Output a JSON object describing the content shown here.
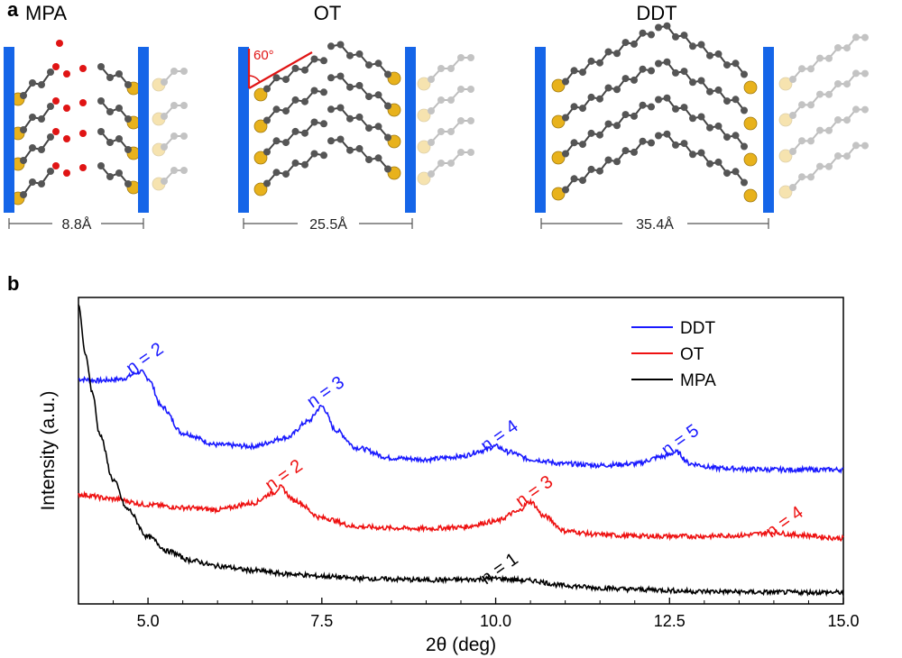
{
  "colors": {
    "electrode": "#1565e8",
    "sulfur": "#e8b21c",
    "carbon": "#555555",
    "oxygen": "#e01414",
    "angle": "#e01414",
    "DDT": "#1a1aff",
    "OT": "#ee1111",
    "MPA": "#000000"
  },
  "panel_a": {
    "letter": "a",
    "structures": [
      {
        "name": "MPA",
        "spacing": "8.8Å"
      },
      {
        "name": "OT",
        "spacing": "25.5Å",
        "angle": "60°"
      },
      {
        "name": "DDT",
        "spacing": "35.4Å"
      }
    ]
  },
  "panel_b": {
    "letter": "b"
  },
  "chart_data": {
    "type": "line",
    "xlabel": "2θ (deg)",
    "ylabel": "Intensity (a.u.)",
    "xlim": [
      4.0,
      15.0
    ],
    "ylim": [
      0,
      1
    ],
    "xticks": [
      5.0,
      7.5,
      10.0,
      12.5,
      15.0
    ],
    "xtick_labels": [
      "5.0",
      "7.5",
      "10.0",
      "12.5",
      "15.0"
    ],
    "legend": {
      "position": "top-right",
      "entries": [
        "DDT",
        "OT",
        "MPA"
      ]
    },
    "series": [
      {
        "name": "DDT",
        "x": [
          4.0,
          4.3,
          4.6,
          4.9,
          5.0,
          5.2,
          5.5,
          6.0,
          6.5,
          7.0,
          7.3,
          7.5,
          7.7,
          8.0,
          8.5,
          9.0,
          9.5,
          9.8,
          10.0,
          10.2,
          10.5,
          11.0,
          11.5,
          12.0,
          12.4,
          12.6,
          12.8,
          13.2,
          14.0,
          15.0
        ],
        "values": [
          0.745,
          0.74,
          0.745,
          0.77,
          0.748,
          0.65,
          0.56,
          0.52,
          0.515,
          0.545,
          0.6,
          0.652,
          0.57,
          0.51,
          0.475,
          0.47,
          0.48,
          0.5,
          0.515,
          0.495,
          0.47,
          0.455,
          0.45,
          0.455,
          0.48,
          0.495,
          0.455,
          0.44,
          0.435,
          0.435
        ]
      },
      {
        "name": "OT",
        "x": [
          4.0,
          4.5,
          5.0,
          5.5,
          6.0,
          6.5,
          6.8,
          6.9,
          7.1,
          7.5,
          8.0,
          8.5,
          9.0,
          9.5,
          10.0,
          10.3,
          10.5,
          10.7,
          11.0,
          11.5,
          12.0,
          12.5,
          13.0,
          13.5,
          14.0,
          14.3,
          15.0
        ],
        "values": [
          0.35,
          0.335,
          0.315,
          0.305,
          0.298,
          0.32,
          0.355,
          0.375,
          0.33,
          0.27,
          0.24,
          0.235,
          0.233,
          0.238,
          0.258,
          0.29,
          0.325,
          0.275,
          0.225,
          0.212,
          0.208,
          0.207,
          0.207,
          0.21,
          0.22,
          0.212,
          0.2
        ]
      },
      {
        "name": "MPA",
        "x": [
          4.0,
          4.1,
          4.2,
          4.3,
          4.5,
          4.7,
          5.0,
          5.3,
          5.6,
          6.0,
          6.5,
          7.0,
          7.5,
          8.0,
          8.5,
          9.0,
          9.5,
          10.0,
          10.5,
          11.0,
          11.5,
          12.0,
          13.0,
          14.0,
          15.0
        ],
        "values": [
          1.0,
          0.83,
          0.7,
          0.56,
          0.4,
          0.3,
          0.205,
          0.155,
          0.125,
          0.105,
          0.09,
          0.078,
          0.07,
          0.063,
          0.06,
          0.057,
          0.058,
          0.062,
          0.055,
          0.038,
          0.03,
          0.025,
          0.018,
          0.015,
          0.015
        ]
      }
    ],
    "annotations": [
      {
        "series": "DDT",
        "text": "n = 2",
        "x": 5.0,
        "y": 0.8
      },
      {
        "series": "DDT",
        "text": "n = 3",
        "x": 7.6,
        "y": 0.685
      },
      {
        "series": "DDT",
        "text": "n = 4",
        "x": 10.1,
        "y": 0.535
      },
      {
        "series": "DDT",
        "text": "n = 5",
        "x": 12.7,
        "y": 0.52
      },
      {
        "series": "OT",
        "text": "n = 2",
        "x": 7.0,
        "y": 0.4
      },
      {
        "series": "OT",
        "text": "n = 3",
        "x": 10.6,
        "y": 0.345
      },
      {
        "series": "OT",
        "text": "n = 4",
        "x": 14.2,
        "y": 0.24
      },
      {
        "series": "MPA",
        "text": "n = 1",
        "x": 10.1,
        "y": 0.08
      }
    ]
  }
}
